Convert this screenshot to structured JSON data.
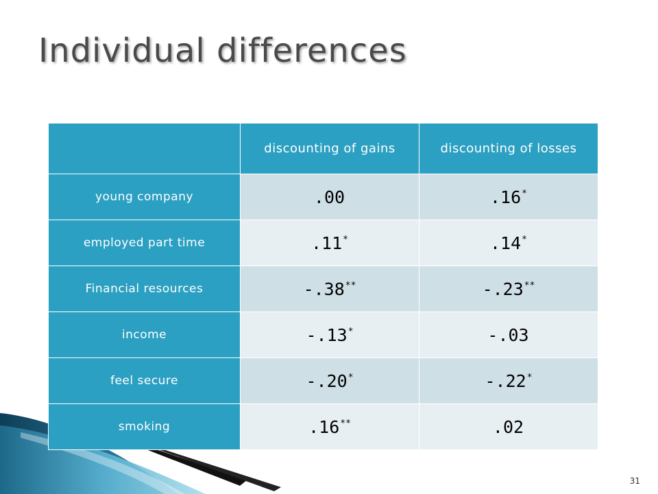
{
  "slide": {
    "title": "Individual differences",
    "page_number": "31"
  },
  "table": {
    "headers": [
      "",
      "discounting of gains",
      "discounting of losses"
    ],
    "rows": [
      {
        "label": "young company",
        "gains": ".00",
        "gains_sig": "",
        "losses": ".16",
        "losses_sig": "*"
      },
      {
        "label": "employed part time",
        "gains": ".11",
        "gains_sig": "*",
        "losses": ".14",
        "losses_sig": "*"
      },
      {
        "label": "Financial resources",
        "gains": "-.38",
        "gains_sig": "**",
        "losses": "-.23",
        "losses_sig": "**"
      },
      {
        "label": "income",
        "gains": "-.13",
        "gains_sig": "*",
        "losses": "-.03",
        "losses_sig": ""
      },
      {
        "label": "feel secure",
        "gains": "-.20",
        "gains_sig": "*",
        "losses": "-.22",
        "losses_sig": "*"
      },
      {
        "label": "smoking",
        "gains": ".16",
        "gains_sig": "**",
        "losses": ".02",
        "losses_sig": ""
      }
    ]
  },
  "colors": {
    "header_bg": "#2ca0c2",
    "row_odd_bg": "#cfdfe6",
    "row_even_bg": "#e8eff2",
    "title_color": "#4a4a4a"
  }
}
